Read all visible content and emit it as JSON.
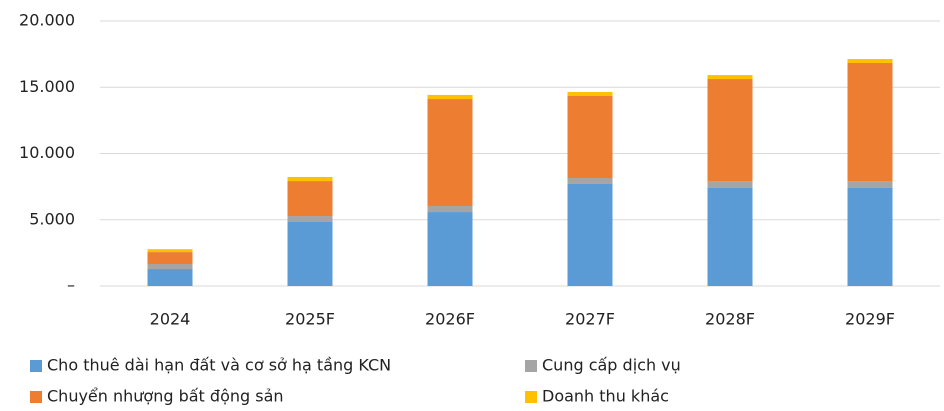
{
  "chart_data": {
    "type": "bar",
    "stacked": true,
    "categories": [
      "2024",
      "2025F",
      "2026F",
      "2027F",
      "2028F",
      "2029F"
    ],
    "series": [
      {
        "name": "Cho thuê dài hạn đất và cơ sở hạ tầng KCN",
        "color": "#5b9bd5",
        "values": [
          1280,
          4830,
          5580,
          7700,
          7400,
          7400
        ]
      },
      {
        "name": "Cung cấp dịch vụ",
        "color": "#a5a5a5",
        "values": [
          380,
          450,
          460,
          450,
          520,
          520
        ]
      },
      {
        "name": "Chuyển nhượng bất động sản",
        "color": "#ed7d31",
        "values": [
          900,
          2640,
          8070,
          6190,
          7700,
          8910
        ]
      },
      {
        "name": "Doanh thu khác",
        "color": "#ffc000",
        "values": [
          220,
          310,
          310,
          300,
          300,
          300
        ]
      }
    ],
    "ylim": [
      0,
      20000
    ],
    "yticks": [
      {
        "value": 0,
        "label": "–"
      },
      {
        "value": 5000,
        "label": "5.000"
      },
      {
        "value": 10000,
        "label": "10.000"
      },
      {
        "value": 15000,
        "label": "15.000"
      },
      {
        "value": 20000,
        "label": "20.000"
      }
    ],
    "grid": true,
    "legend": "bottom"
  }
}
